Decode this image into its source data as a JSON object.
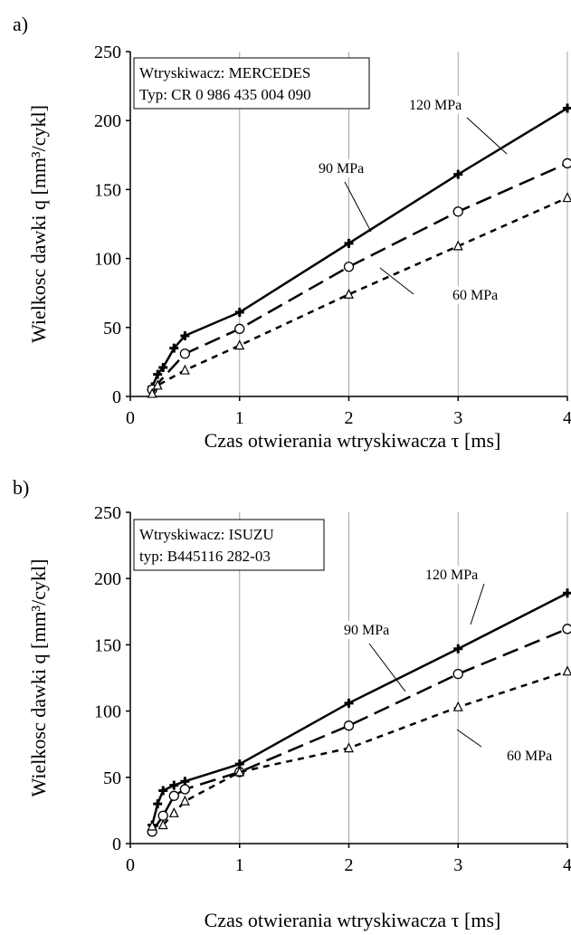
{
  "figure": {
    "panel_labels": [
      "a)",
      "b)"
    ]
  },
  "chart_data": [
    {
      "type": "line",
      "panel": "a)",
      "xlabel": "Czas otwierania wtryskiwacza τ  [ms]",
      "ylabel": "Wielkosc dawki   q   [mm³/cykl]",
      "xlim": [
        0,
        4
      ],
      "ylim": [
        0,
        250
      ],
      "xticks": [
        0,
        1,
        2,
        3,
        4
      ],
      "yticks": [
        0,
        50,
        100,
        150,
        200,
        250
      ],
      "grid": "vertical",
      "info_box": [
        "Wtryskiwacz: MERCEDES",
        "Typ: CR 0 986 435 004 090"
      ],
      "series": [
        {
          "name": "120 MPa",
          "marker": "plus",
          "dash": "solid",
          "x": [
            0.2,
            0.25,
            0.3,
            0.4,
            0.5,
            1.0,
            2.0,
            3.0,
            4.0
          ],
          "y": [
            7,
            16,
            21,
            35,
            44,
            61,
            111,
            161,
            209
          ]
        },
        {
          "name": "90 MPa",
          "marker": "circle",
          "dash": "long",
          "x": [
            0.2,
            0.5,
            1.0,
            2.0,
            3.0,
            4.0
          ],
          "y": [
            5,
            31,
            49,
            94,
            134,
            169
          ]
        },
        {
          "name": "60 MPa",
          "marker": "triangle",
          "dash": "short",
          "x": [
            0.2,
            0.25,
            0.5,
            1.0,
            2.0,
            3.0,
            4.0
          ],
          "y": [
            2,
            8,
            19,
            37,
            74,
            109,
            144
          ]
        }
      ]
    },
    {
      "type": "line",
      "panel": "b)",
      "xlabel": "Czas otwierania wtryskiwacza  τ  [ms]",
      "ylabel": "Wielkosc dawki   q    [mm³/cykl]",
      "xlim": [
        0,
        4
      ],
      "ylim": [
        0,
        250
      ],
      "xticks": [
        0,
        1,
        2,
        3,
        4
      ],
      "yticks": [
        0,
        50,
        100,
        150,
        200,
        250
      ],
      "grid": "vertical",
      "info_box": [
        "Wtryskiwacz: ISUZU",
        "typ: B445116 282-03"
      ],
      "series": [
        {
          "name": "120 MPa",
          "marker": "plus",
          "dash": "solid",
          "x": [
            0.2,
            0.25,
            0.3,
            0.4,
            0.5,
            1.0,
            2.0,
            3.0,
            4.0
          ],
          "y": [
            14,
            30,
            40,
            44,
            47,
            60,
            106,
            147,
            189
          ]
        },
        {
          "name": "90 MPa",
          "marker": "circle",
          "dash": "long",
          "x": [
            0.2,
            0.3,
            0.4,
            0.5,
            1.0,
            2.0,
            3.0,
            4.0
          ],
          "y": [
            9,
            21,
            36,
            41,
            54,
            89,
            128,
            162
          ]
        },
        {
          "name": "60 MPa",
          "marker": "triangle",
          "dash": "short",
          "x": [
            0.2,
            0.3,
            0.4,
            0.5,
            1.0,
            2.0,
            3.0,
            4.0
          ],
          "y": [
            13,
            14,
            23,
            32,
            54,
            72,
            103,
            130
          ]
        }
      ]
    }
  ]
}
